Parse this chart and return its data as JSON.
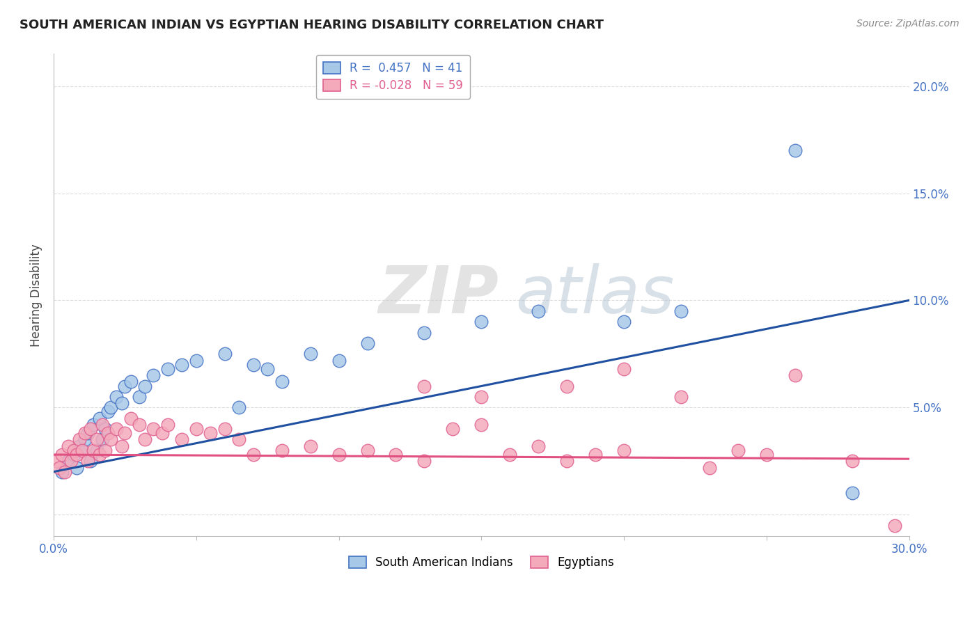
{
  "title": "SOUTH AMERICAN INDIAN VS EGYPTIAN HEARING DISABILITY CORRELATION CHART",
  "source": "Source: ZipAtlas.com",
  "ylabel": "Hearing Disability",
  "xlim": [
    0.0,
    0.3
  ],
  "ylim": [
    -0.01,
    0.215
  ],
  "xtick_positions": [
    0.0,
    0.05,
    0.1,
    0.15,
    0.2,
    0.25,
    0.3
  ],
  "xticklabels": [
    "0.0%",
    "",
    "",
    "",
    "",
    "",
    "30.0%"
  ],
  "ytick_positions": [
    0.0,
    0.05,
    0.1,
    0.15,
    0.2
  ],
  "yticklabels": [
    "",
    "5.0%",
    "10.0%",
    "15.0%",
    "20.0%"
  ],
  "blue_R": 0.457,
  "blue_N": 41,
  "pink_R": -0.028,
  "pink_N": 59,
  "blue_fill": "#A8C8E8",
  "pink_fill": "#F4AABB",
  "blue_edge": "#4472C4",
  "pink_edge": "#E06090",
  "blue_line": "#2050A0",
  "pink_line": "#E05080",
  "legend_label_blue": "South American Indians",
  "legend_label_pink": "Egyptians",
  "blue_x": [
    0.003,
    0.005,
    0.007,
    0.008,
    0.009,
    0.01,
    0.011,
    0.012,
    0.013,
    0.014,
    0.015,
    0.016,
    0.017,
    0.018,
    0.019,
    0.02,
    0.022,
    0.024,
    0.025,
    0.027,
    0.03,
    0.032,
    0.035,
    0.04,
    0.045,
    0.05,
    0.06,
    0.065,
    0.07,
    0.075,
    0.08,
    0.09,
    0.1,
    0.11,
    0.13,
    0.15,
    0.17,
    0.2,
    0.22,
    0.26,
    0.28
  ],
  "blue_y": [
    0.02,
    0.025,
    0.028,
    0.022,
    0.032,
    0.03,
    0.035,
    0.038,
    0.025,
    0.042,
    0.03,
    0.045,
    0.035,
    0.04,
    0.048,
    0.05,
    0.055,
    0.052,
    0.06,
    0.062,
    0.055,
    0.06,
    0.065,
    0.068,
    0.07,
    0.072,
    0.075,
    0.05,
    0.07,
    0.068,
    0.062,
    0.075,
    0.072,
    0.08,
    0.085,
    0.09,
    0.095,
    0.09,
    0.095,
    0.17,
    0.01
  ],
  "pink_x": [
    0.001,
    0.002,
    0.003,
    0.004,
    0.005,
    0.006,
    0.007,
    0.008,
    0.009,
    0.01,
    0.011,
    0.012,
    0.013,
    0.014,
    0.015,
    0.016,
    0.017,
    0.018,
    0.019,
    0.02,
    0.022,
    0.024,
    0.025,
    0.027,
    0.03,
    0.032,
    0.035,
    0.038,
    0.04,
    0.045,
    0.05,
    0.055,
    0.06,
    0.065,
    0.07,
    0.08,
    0.09,
    0.1,
    0.11,
    0.12,
    0.13,
    0.14,
    0.15,
    0.16,
    0.17,
    0.18,
    0.19,
    0.2,
    0.22,
    0.24,
    0.25,
    0.26,
    0.28,
    0.13,
    0.15,
    0.18,
    0.2,
    0.23,
    0.295
  ],
  "pink_y": [
    0.025,
    0.022,
    0.028,
    0.02,
    0.032,
    0.025,
    0.03,
    0.028,
    0.035,
    0.03,
    0.038,
    0.025,
    0.04,
    0.03,
    0.035,
    0.028,
    0.042,
    0.03,
    0.038,
    0.035,
    0.04,
    0.032,
    0.038,
    0.045,
    0.042,
    0.035,
    0.04,
    0.038,
    0.042,
    0.035,
    0.04,
    0.038,
    0.04,
    0.035,
    0.028,
    0.03,
    0.032,
    0.028,
    0.03,
    0.028,
    0.025,
    0.04,
    0.042,
    0.028,
    0.032,
    0.025,
    0.028,
    0.03,
    0.055,
    0.03,
    0.028,
    0.065,
    0.025,
    0.06,
    0.055,
    0.06,
    0.068,
    0.022,
    -0.005
  ],
  "blue_line_x0": 0.0,
  "blue_line_y0": 0.02,
  "blue_line_x1": 0.3,
  "blue_line_y1": 0.1,
  "pink_line_x0": 0.0,
  "pink_line_y0": 0.028,
  "pink_line_x1": 0.3,
  "pink_line_y1": 0.026,
  "watermark_zip": "ZIP",
  "watermark_atlas": "atlas",
  "tick_color": "#4472C4",
  "grid_color": "#DDDDDD",
  "background": "#FFFFFF"
}
